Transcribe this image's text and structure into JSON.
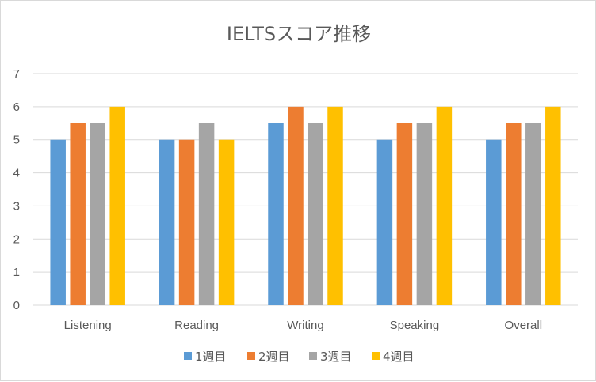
{
  "chart_data": {
    "type": "bar",
    "title": "IELTSスコア推移",
    "categories": [
      "Listening",
      "Reading",
      "Writing",
      "Speaking",
      "Overall"
    ],
    "series": [
      {
        "name": "1週目",
        "color": "#5b9bd5",
        "values": [
          5,
          5,
          5.5,
          5,
          5
        ]
      },
      {
        "name": "2週目",
        "color": "#ed7d31",
        "values": [
          5.5,
          5,
          6,
          5.5,
          5.5
        ]
      },
      {
        "name": "3週目",
        "color": "#a5a5a5",
        "values": [
          5.5,
          5.5,
          5.5,
          5.5,
          5.5
        ]
      },
      {
        "name": "4週目",
        "color": "#ffc000",
        "values": [
          6,
          5,
          6,
          6,
          6
        ]
      }
    ],
    "ylim": [
      0,
      7
    ],
    "yticks": [
      0,
      1,
      2,
      3,
      4,
      5,
      6,
      7
    ],
    "grid": true,
    "legend": "bottom",
    "xlabel": "",
    "ylabel": ""
  }
}
